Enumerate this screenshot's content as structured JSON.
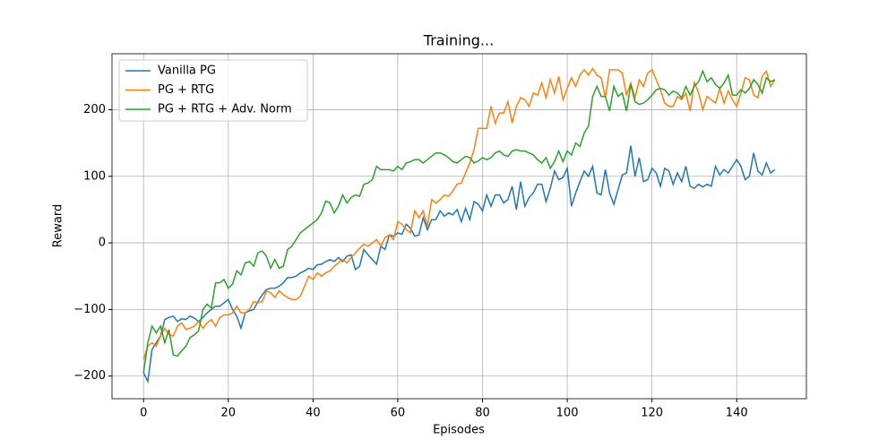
{
  "chart_data": {
    "type": "line",
    "title": "Training...",
    "xlabel": "Episodes",
    "ylabel": "Reward",
    "x": [
      0,
      1,
      2,
      3,
      4,
      5,
      6,
      7,
      8,
      9,
      10,
      11,
      12,
      13,
      14,
      15,
      16,
      17,
      18,
      19,
      20,
      21,
      22,
      23,
      24,
      25,
      26,
      27,
      28,
      29,
      30,
      31,
      32,
      33,
      34,
      35,
      36,
      37,
      38,
      39,
      40,
      41,
      42,
      43,
      44,
      45,
      46,
      47,
      48,
      49,
      50,
      51,
      52,
      53,
      54,
      55,
      56,
      57,
      58,
      59,
      60,
      61,
      62,
      63,
      64,
      65,
      66,
      67,
      68,
      69,
      70,
      71,
      72,
      73,
      74,
      75,
      76,
      77,
      78,
      79,
      80,
      81,
      82,
      83,
      84,
      85,
      86,
      87,
      88,
      89,
      90,
      91,
      92,
      93,
      94,
      95,
      96,
      97,
      98,
      99,
      100,
      101,
      102,
      103,
      104,
      105,
      106,
      107,
      108,
      109,
      110,
      111,
      112,
      113,
      114,
      115,
      116,
      117,
      118,
      119,
      120,
      121,
      122,
      123,
      124,
      125,
      126,
      127,
      128,
      129,
      130,
      131,
      132,
      133,
      134,
      135,
      136,
      137,
      138,
      139,
      140,
      141,
      142,
      143,
      144,
      145,
      146,
      147,
      148,
      149
    ],
    "series": [
      {
        "name": "Vanilla PG",
        "color": "#1f77b4",
        "values": [
          -195,
          -208,
          -160,
          -150,
          -140,
          -115,
          -112,
          -110,
          -118,
          -114,
          -115,
          -110,
          -113,
          -118,
          -112,
          -105,
          -100,
          -95,
          -95,
          -90,
          -85,
          -100,
          -110,
          -128,
          -105,
          -102,
          -100,
          -88,
          -78,
          -70,
          -68,
          -68,
          -65,
          -60,
          -52,
          -52,
          -50,
          -45,
          -42,
          -38,
          -40,
          -33,
          -32,
          -28,
          -25,
          -28,
          -22,
          -28,
          -20,
          -18,
          -40,
          -35,
          -10,
          -18,
          -25,
          -32,
          -5,
          -10,
          12,
          10,
          15,
          13,
          28,
          22,
          10,
          12,
          38,
          20,
          35,
          35,
          48,
          40,
          45,
          42,
          50,
          32,
          52,
          35,
          62,
          58,
          48,
          72,
          55,
          72,
          72,
          60,
          65,
          85,
          50,
          92,
          55,
          68,
          75,
          88,
          88,
          62,
          82,
          108,
          95,
          98,
          112,
          55,
          75,
          92,
          108,
          100,
          115,
          75,
          72,
          110,
          75,
          58,
          80,
          102,
          105,
          146,
          100,
          128,
          92,
          95,
          112,
          105,
          85,
          112,
          108,
          88,
          105,
          92,
          115,
          85,
          82,
          88,
          84,
          88,
          85,
          115,
          102,
          110,
          105,
          115,
          125,
          115,
          95,
          100,
          135,
          108,
          102,
          120,
          105,
          110
        ]
      },
      {
        "name": "PG + RTG",
        "color": "#ff7f0e",
        "values": [
          -175,
          -155,
          -150,
          -155,
          -140,
          -128,
          -138,
          -140,
          -125,
          -120,
          -130,
          -128,
          -125,
          -118,
          -128,
          -120,
          -115,
          -125,
          -112,
          -108,
          -108,
          -105,
          -95,
          -105,
          -105,
          -100,
          -88,
          -90,
          -88,
          -72,
          -75,
          -82,
          -72,
          -78,
          -82,
          -85,
          -85,
          -80,
          -65,
          -50,
          -55,
          -45,
          -50,
          -45,
          -42,
          -35,
          -30,
          -25,
          -30,
          -22,
          -15,
          -8,
          -2,
          -5,
          0,
          5,
          -5,
          8,
          12,
          5,
          32,
          28,
          20,
          15,
          48,
          38,
          48,
          25,
          65,
          60,
          65,
          72,
          70,
          78,
          88,
          90,
          105,
          120,
          140,
          172,
          172,
          172,
          205,
          180,
          195,
          195,
          212,
          180,
          205,
          218,
          215,
          205,
          225,
          222,
          240,
          218,
          245,
          225,
          250,
          215,
          232,
          248,
          235,
          252,
          260,
          252,
          262,
          252,
          248,
          218,
          260,
          260,
          260,
          255,
          222,
          240,
          218,
          245,
          235,
          255,
          260,
          245,
          230,
          210,
          205,
          205,
          220,
          215,
          225,
          198,
          242,
          225,
          200,
          220,
          215,
          210,
          232,
          210,
          228,
          215,
          205,
          225,
          248,
          245,
          222,
          218,
          250,
          258,
          235,
          245
        ]
      },
      {
        "name": "PG + RTG + Adv. Norm",
        "color": "#2ca02c",
        "values": [
          -195,
          -150,
          -125,
          -135,
          -125,
          -150,
          -130,
          -168,
          -170,
          -162,
          -155,
          -142,
          -138,
          -132,
          -100,
          -92,
          -98,
          -60,
          -60,
          -55,
          -68,
          -62,
          -42,
          -48,
          -30,
          -28,
          -35,
          -15,
          -12,
          -20,
          -38,
          -25,
          -38,
          -35,
          -10,
          -5,
          5,
          15,
          20,
          25,
          30,
          35,
          45,
          63,
          60,
          45,
          55,
          72,
          60,
          68,
          72,
          70,
          88,
          90,
          95,
          115,
          110,
          110,
          110,
          108,
          115,
          110,
          120,
          122,
          125,
          125,
          120,
          125,
          130,
          135,
          135,
          132,
          128,
          122,
          120,
          125,
          130,
          128,
          120,
          123,
          128,
          125,
          128,
          135,
          138,
          132,
          130,
          138,
          140,
          138,
          138,
          135,
          132,
          125,
          120,
          128,
          112,
          122,
          138,
          122,
          138,
          132,
          150,
          145,
          165,
          175,
          220,
          235,
          220,
          220,
          198,
          235,
          220,
          225,
          198,
          238,
          212,
          208,
          210,
          215,
          222,
          230,
          232,
          230,
          222,
          228,
          225,
          218,
          235,
          222,
          235,
          242,
          258,
          242,
          248,
          238,
          232,
          240,
          252,
          222,
          222,
          230,
          225,
          232,
          245,
          238,
          225,
          248,
          242,
          245
        ]
      }
    ],
    "xlim": [
      -7.45,
      156.45
    ],
    "ylim": [
      -234,
      284
    ],
    "xticks": [
      0,
      20,
      40,
      60,
      80,
      100,
      120,
      140
    ],
    "yticks": [
      {
        "value": -200,
        "label": "−200"
      },
      {
        "value": -100,
        "label": "−100"
      },
      0,
      100,
      200
    ],
    "grid": true,
    "legend": "upper left"
  }
}
